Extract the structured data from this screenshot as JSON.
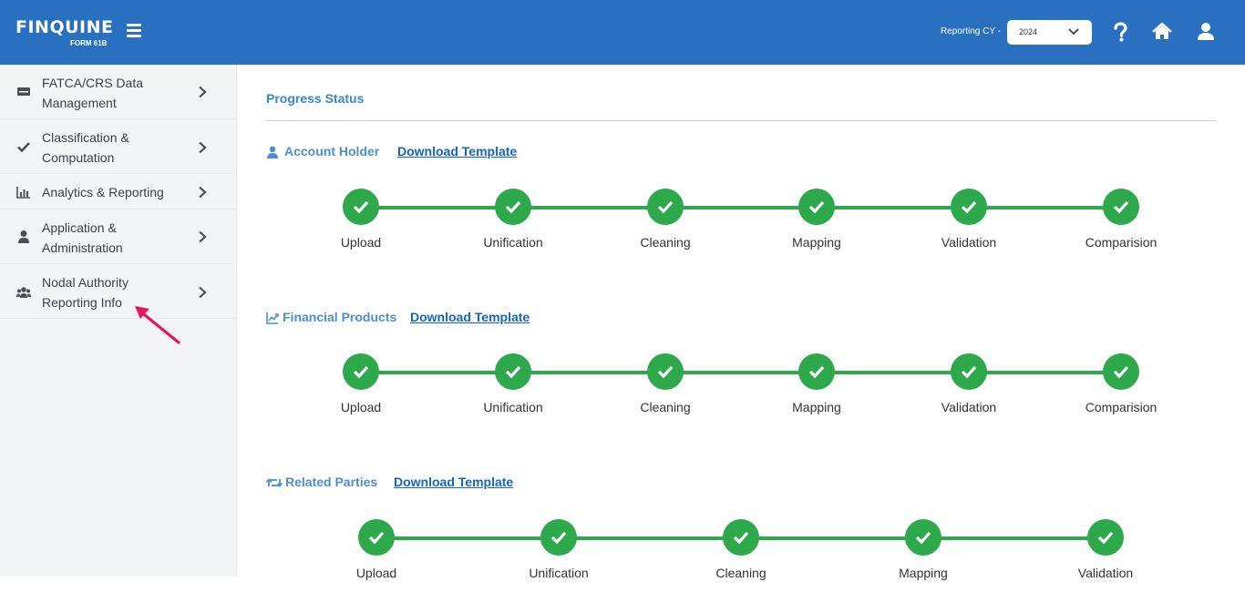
{
  "header": {
    "logo_text": "FINQUINE",
    "logo_sub": "FORM 61B",
    "reporting_label": "Reporting CY -",
    "year_value": "2024",
    "icons": [
      "menu-icon",
      "help-icon",
      "home-icon",
      "user-icon"
    ],
    "bg_color": "#2a70c0"
  },
  "sidebar": {
    "items": [
      {
        "line1": "FATCA/CRS Data",
        "line2": "Management",
        "icon": "monitor-icon"
      },
      {
        "line1": "Classification &",
        "line2": "Computation",
        "icon": "check-icon"
      },
      {
        "line1": "Analytics & Reporting",
        "line2": "",
        "icon": "bar-chart-icon"
      },
      {
        "line1": "Application &",
        "line2": "Administration",
        "icon": "user-icon"
      },
      {
        "line1": "Nodal Authority",
        "line2": "Reporting Info",
        "icon": "users-icon"
      }
    ]
  },
  "main": {
    "title": "Progress Status",
    "blocks": [
      {
        "name": "Account Holder",
        "link": "Download Template",
        "icon": "person-icon",
        "steps": [
          "Upload",
          "Unification",
          "Cleaning",
          "Mapping",
          "Validation",
          "Comparision"
        ]
      },
      {
        "name": "Financial Products",
        "link": "Download Template",
        "icon": "line-chart-icon",
        "steps": [
          "Upload",
          "Unification",
          "Cleaning",
          "Mapping",
          "Validation",
          "Comparision"
        ]
      },
      {
        "name": "Related Parties",
        "link": "Download Template",
        "icon": "retweet-icon",
        "steps": [
          "Upload",
          "Unification",
          "Cleaning",
          "Mapping",
          "Validation"
        ]
      }
    ],
    "status_color": "#2da84a"
  }
}
